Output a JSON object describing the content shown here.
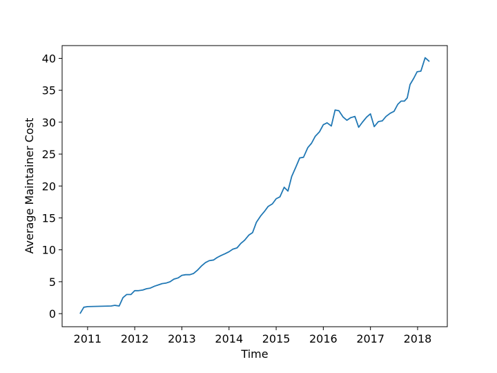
{
  "chart_data": {
    "type": "line",
    "xlabel": "Time",
    "ylabel": "Average Maintainer Cost",
    "x": [
      2010.84,
      2010.92,
      2011.0,
      2011.5,
      2011.58,
      2011.67,
      2011.75,
      2011.83,
      2011.92,
      2012.0,
      2012.08,
      2012.17,
      2012.25,
      2012.33,
      2012.42,
      2012.5,
      2012.58,
      2012.67,
      2012.75,
      2012.83,
      2012.92,
      2013.0,
      2013.08,
      2013.17,
      2013.25,
      2013.33,
      2013.42,
      2013.5,
      2013.58,
      2013.67,
      2013.75,
      2013.83,
      2013.92,
      2014.0,
      2014.08,
      2014.17,
      2014.25,
      2014.33,
      2014.42,
      2014.5,
      2014.58,
      2014.67,
      2014.75,
      2014.83,
      2014.92,
      2015.0,
      2015.08,
      2015.17,
      2015.25,
      2015.33,
      2015.42,
      2015.5,
      2015.58,
      2015.67,
      2015.75,
      2015.83,
      2015.92,
      2016.0,
      2016.08,
      2016.17,
      2016.25,
      2016.33,
      2016.42,
      2016.5,
      2016.58,
      2016.67,
      2016.75,
      2016.83,
      2016.92,
      2017.0,
      2017.08,
      2017.17,
      2017.25,
      2017.33,
      2017.42,
      2017.5,
      2017.58,
      2017.65,
      2017.72,
      2017.78,
      2017.84,
      2017.92,
      2017.99,
      2018.07,
      2018.16,
      2018.25
    ],
    "series": [
      {
        "name": "Average Maintainer Cost",
        "color": "#1f77b4",
        "values": [
          0,
          1.0,
          1.1,
          1.2,
          1.3,
          1.2,
          2.5,
          3.0,
          3.0,
          3.6,
          3.6,
          3.7,
          3.9,
          4.0,
          4.3,
          4.5,
          4.7,
          4.8,
          5.0,
          5.4,
          5.6,
          6.0,
          6.1,
          6.1,
          6.3,
          6.8,
          7.5,
          8.0,
          8.3,
          8.4,
          8.8,
          9.1,
          9.4,
          9.7,
          10.1,
          10.3,
          11.0,
          11.5,
          12.3,
          12.7,
          14.3,
          15.3,
          16.0,
          16.8,
          17.2,
          18.0,
          18.3,
          19.8,
          19.2,
          21.5,
          23.0,
          24.4,
          24.5,
          26.0,
          26.7,
          27.8,
          28.5,
          29.6,
          29.9,
          29.4,
          31.9,
          31.8,
          30.8,
          30.3,
          30.7,
          30.9,
          29.2,
          30.0,
          30.8,
          31.3,
          29.3,
          30.1,
          30.2,
          30.9,
          31.4,
          31.7,
          32.8,
          33.3,
          33.3,
          33.8,
          35.9,
          36.9,
          37.9,
          38.0,
          40.1,
          39.5
        ]
      }
    ],
    "xlim": [
      2010.46,
      2018.63
    ],
    "xticks": [
      2011,
      2012,
      2013,
      2014,
      2015,
      2016,
      2017,
      2018
    ],
    "ylim": [
      -2.05,
      42.0
    ],
    "yticks": [
      0,
      5,
      10,
      15,
      20,
      25,
      30,
      35,
      40
    ],
    "grid": false
  }
}
